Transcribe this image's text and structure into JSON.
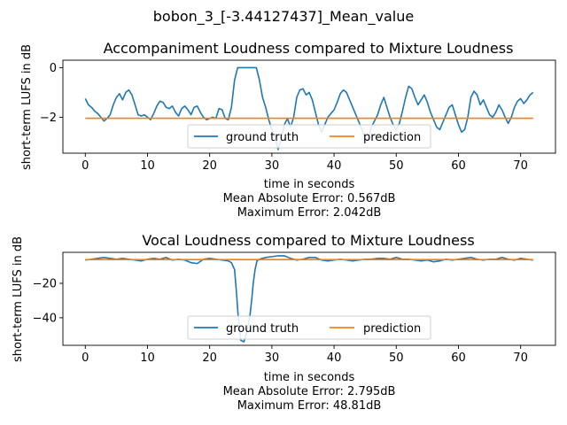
{
  "figure": {
    "suptitle": "bobon_3_[-3.44127437]_Mean_value"
  },
  "colors": {
    "ground_truth": "#1f77b4",
    "prediction": "#ff7f0e"
  },
  "chart_data": [
    {
      "type": "line",
      "title": "Accompaniment Loudness compared to Mixture Loudness",
      "xlabel": "time in seconds",
      "ylabel": "short-term LUFS in dB",
      "xlim": [
        -3.6,
        75.6
      ],
      "ylim": [
        -3.45,
        0.3
      ],
      "xticks": [
        0,
        10,
        20,
        30,
        40,
        50,
        60,
        70
      ],
      "yticks": [
        0,
        -2
      ],
      "legend_position": "lower center",
      "stats": [
        "Mean Absolute Error: 0.567dB",
        "Maximum Error: 2.042dB"
      ],
      "series": [
        {
          "name": "ground truth",
          "x": [
            0,
            0.5,
            1,
            1.5,
            2,
            2.5,
            3,
            3.5,
            4,
            4.5,
            5,
            5.5,
            6,
            6.5,
            7,
            7.5,
            8,
            8.5,
            9,
            9.5,
            10,
            10.5,
            11,
            11.5,
            12,
            12.5,
            13,
            13.5,
            14,
            14.5,
            15,
            15.5,
            16,
            16.5,
            17,
            17.5,
            18,
            18.5,
            19,
            19.5,
            20,
            20.5,
            21,
            21.5,
            22,
            22.5,
            23,
            23.5,
            24,
            24.5,
            25,
            25.5,
            26,
            26.5,
            27,
            27.5,
            28,
            28.5,
            29,
            29.5,
            30,
            30.5,
            31,
            31.5,
            32,
            32.5,
            33,
            33.5,
            34,
            34.5,
            35,
            35.5,
            36,
            36.5,
            37,
            37.5,
            38,
            38.5,
            39,
            39.5,
            40,
            40.5,
            41,
            41.5,
            42,
            42.5,
            43,
            43.5,
            44,
            44.5,
            45,
            45.5,
            46,
            46.5,
            47,
            47.5,
            48,
            48.5,
            49,
            49.5,
            50,
            50.5,
            51,
            51.5,
            52,
            52.5,
            53,
            53.5,
            54,
            54.5,
            55,
            55.5,
            56,
            56.5,
            57,
            57.5,
            58,
            58.5,
            59,
            59.5,
            60,
            60.5,
            61,
            61.5,
            62,
            62.5,
            63,
            63.5,
            64,
            64.5,
            65,
            65.5,
            66,
            66.5,
            67,
            67.5,
            68,
            68.5,
            69,
            69.5,
            70,
            70.5,
            71,
            71.5,
            72
          ],
          "values": [
            -1.25,
            -1.5,
            -1.6,
            -1.75,
            -1.85,
            -2.0,
            -2.15,
            -2.05,
            -1.9,
            -1.5,
            -1.2,
            -1.05,
            -1.3,
            -1.0,
            -0.9,
            -1.1,
            -1.5,
            -1.9,
            -1.95,
            -1.9,
            -2.0,
            -2.1,
            -1.85,
            -1.55,
            -1.35,
            -1.4,
            -1.6,
            -1.65,
            -1.55,
            -1.8,
            -1.95,
            -1.65,
            -1.55,
            -1.7,
            -1.9,
            -1.6,
            -1.55,
            -1.8,
            -2.0,
            -2.1,
            -2.05,
            -2.0,
            -2.05,
            -1.65,
            -1.7,
            -2.05,
            -2.1,
            -1.6,
            -0.5,
            0.0,
            0.0,
            0.0,
            0.0,
            0.0,
            0.0,
            0.0,
            -0.5,
            -1.2,
            -1.6,
            -2.1,
            -2.5,
            -2.8,
            -3.3,
            -2.9,
            -2.3,
            -2.05,
            -2.4,
            -2.0,
            -1.2,
            -0.9,
            -0.85,
            -1.1,
            -1.0,
            -1.3,
            -1.8,
            -2.3,
            -2.6,
            -2.3,
            -2.0,
            -1.85,
            -1.7,
            -1.4,
            -1.05,
            -0.9,
            -1.0,
            -1.3,
            -1.6,
            -1.9,
            -2.2,
            -2.5,
            -2.9,
            -2.85,
            -2.4,
            -2.15,
            -1.9,
            -1.5,
            -1.2,
            -1.6,
            -2.0,
            -2.3,
            -2.5,
            -2.25,
            -1.75,
            -1.2,
            -0.75,
            -0.85,
            -1.2,
            -1.5,
            -1.3,
            -1.1,
            -1.4,
            -1.8,
            -2.1,
            -2.4,
            -2.5,
            -2.2,
            -1.9,
            -1.6,
            -1.5,
            -1.9,
            -2.3,
            -2.6,
            -2.5,
            -2.0,
            -1.2,
            -0.95,
            -1.1,
            -1.5,
            -1.3,
            -1.6,
            -1.9,
            -2.0,
            -1.8,
            -1.5,
            -1.7,
            -2.0,
            -2.25,
            -2.0,
            -1.6,
            -1.35,
            -1.25,
            -1.45,
            -1.3,
            -1.1,
            -1.0
          ]
        },
        {
          "name": "prediction",
          "x": [
            0,
            72
          ],
          "values": [
            -2.04,
            -2.04
          ]
        }
      ]
    },
    {
      "type": "line",
      "title": "Vocal Loudness compared to Mixture Loudness",
      "xlabel": "time in seconds",
      "ylabel": "short-term LUFS in dB",
      "xlim": [
        -3.6,
        75.6
      ],
      "ylim": [
        -56,
        -2
      ],
      "xticks": [
        0,
        10,
        20,
        30,
        40,
        50,
        60,
        70
      ],
      "yticks": [
        -20,
        -40
      ],
      "legend_position": "lower center",
      "stats": [
        "Mean Absolute Error: 2.795dB",
        "Maximum Error: 48.81dB"
      ],
      "series": [
        {
          "name": "ground truth",
          "x": [
            0,
            1,
            2,
            3,
            4,
            5,
            6,
            7,
            8,
            9,
            10,
            11,
            12,
            13,
            14,
            15,
            16,
            17,
            18,
            19,
            20,
            21,
            22,
            23,
            23.5,
            24,
            24.3,
            24.6,
            25,
            25.5,
            26,
            26.5,
            26.8,
            27,
            27.3,
            27.6,
            28,
            29,
            30,
            31,
            32,
            33,
            34,
            35,
            36,
            37,
            38,
            39,
            40,
            41,
            42,
            43,
            44,
            45,
            46,
            47,
            48,
            49,
            50,
            51,
            52,
            53,
            54,
            55,
            56,
            57,
            58,
            59,
            60,
            61,
            62,
            63,
            64,
            65,
            66,
            67,
            68,
            69,
            70,
            71,
            72
          ],
          "values": [
            -6.5,
            -6.0,
            -5.5,
            -5.0,
            -5.5,
            -6.0,
            -5.5,
            -6.0,
            -6.5,
            -7.0,
            -6.0,
            -5.5,
            -6.0,
            -5.0,
            -6.5,
            -6.0,
            -6.5,
            -8.0,
            -8.5,
            -6.0,
            -5.5,
            -6.0,
            -6.5,
            -7.0,
            -8.0,
            -12.0,
            -25.0,
            -40.0,
            -53.0,
            -54.0,
            -48.0,
            -38.0,
            -28.0,
            -20.0,
            -12.0,
            -7.0,
            -6.0,
            -5.0,
            -4.5,
            -4.0,
            -4.0,
            -5.5,
            -6.5,
            -6.0,
            -5.0,
            -5.0,
            -6.5,
            -7.0,
            -6.5,
            -6.0,
            -6.5,
            -7.0,
            -6.5,
            -6.0,
            -6.0,
            -5.5,
            -5.5,
            -6.0,
            -5.0,
            -6.0,
            -6.0,
            -6.5,
            -7.0,
            -6.5,
            -7.5,
            -7.0,
            -6.0,
            -6.5,
            -6.0,
            -5.5,
            -5.0,
            -6.0,
            -6.5,
            -6.0,
            -6.0,
            -5.0,
            -6.0,
            -6.5,
            -5.5,
            -6.0,
            -6.5
          ]
        },
        {
          "name": "prediction",
          "x": [
            0,
            72
          ],
          "values": [
            -6.2,
            -6.2
          ]
        }
      ]
    }
  ]
}
